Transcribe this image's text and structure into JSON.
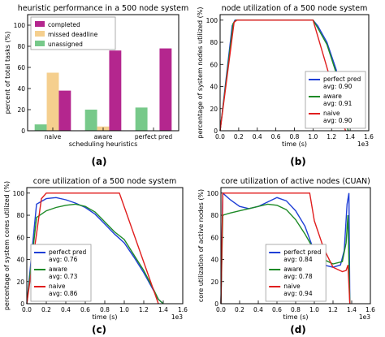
{
  "chart_data": [
    {
      "type": "bar",
      "title": "heuristic performance in a 500 node system",
      "xlabel": "scheduling heuristics",
      "ylabel": "percent of total tasks (%)",
      "ylim": [
        0,
        110
      ],
      "yticks": [
        0,
        20,
        40,
        60,
        80,
        100
      ],
      "categories": [
        "naive",
        "aware",
        "perfect pred"
      ],
      "series": [
        {
          "name": "unassigned",
          "color": "#77c98a",
          "values": [
            6,
            20,
            22
          ]
        },
        {
          "name": "missed deadline",
          "color": "#f5cf8e",
          "values": [
            55,
            4,
            0
          ]
        },
        {
          "name": "completed",
          "color": "#b4268e",
          "values": [
            38,
            76,
            78
          ]
        }
      ],
      "legend": "top-left",
      "panel_label": "(a)"
    },
    {
      "type": "line",
      "title": "node utilization of a 500 node system",
      "xlabel": "time (s)",
      "ylabel": "percentage of system nodes utilized (%)",
      "xlim": [
        0,
        1.6
      ],
      "ylim": [
        0,
        105
      ],
      "xticks": [
        "0.0",
        "0.2",
        "0.4",
        "0.6",
        "0.8",
        "1.0",
        "1.2",
        "1.4",
        "1.6"
      ],
      "yticks": [
        0,
        20,
        40,
        60,
        80,
        100
      ],
      "x_multiplier": "1e3",
      "legend": "bottom-right",
      "series": [
        {
          "name": "perfect pred",
          "avg_label": "avg: 0.90",
          "color": "#1f3fd6",
          "x": [
            0,
            0.13,
            0.16,
            1.0,
            1.05,
            1.15,
            1.25,
            1.32,
            1.35,
            1.38
          ],
          "y": [
            0,
            95,
            100,
            100,
            95,
            80,
            55,
            25,
            8,
            0
          ]
        },
        {
          "name": "aware",
          "avg_label": "avg: 0.91",
          "color": "#1d8a26",
          "x": [
            0,
            0.14,
            0.17,
            1.0,
            1.05,
            1.15,
            1.25,
            1.32,
            1.36,
            1.38
          ],
          "y": [
            0,
            97,
            100,
            100,
            93,
            78,
            52,
            24,
            6,
            0
          ]
        },
        {
          "name": "naive",
          "avg_label": "avg: 0.90",
          "color": "#e01e1e",
          "x": [
            0,
            0.15,
            0.18,
            1.0,
            1.35
          ],
          "y": [
            0,
            98,
            100,
            100,
            0
          ]
        }
      ],
      "panel_label": "(b)"
    },
    {
      "type": "line",
      "title": "core utilization of a 500 node system",
      "xlabel": "time (s)",
      "ylabel": "percentage of system cores utilized (%)",
      "xlim": [
        0,
        1.6
      ],
      "ylim": [
        0,
        105
      ],
      "xticks": [
        "0.0",
        "0.2",
        "0.4",
        "0.6",
        "0.8",
        "1.0",
        "1.2",
        "1.4",
        "1.6"
      ],
      "yticks": [
        0,
        20,
        40,
        60,
        80,
        100
      ],
      "x_multiplier": "1e3",
      "legend": "bottom-left",
      "series": [
        {
          "name": "perfect pred",
          "avg_label": "avg: 0.76",
          "color": "#1f3fd6",
          "x": [
            0,
            0.1,
            0.2,
            0.3,
            0.4,
            0.5,
            0.6,
            0.7,
            0.8,
            0.9,
            1.0,
            1.1,
            1.2,
            1.3,
            1.35,
            1.4
          ],
          "y": [
            0,
            90,
            95,
            96,
            94,
            91,
            87,
            81,
            72,
            63,
            55,
            42,
            28,
            12,
            4,
            0
          ]
        },
        {
          "name": "aware",
          "avg_label": "avg: 0.73",
          "color": "#1d8a26",
          "x": [
            0,
            0.1,
            0.2,
            0.3,
            0.4,
            0.5,
            0.6,
            0.7,
            0.8,
            0.9,
            1.0,
            1.1,
            1.2,
            1.3,
            1.35,
            1.4
          ],
          "y": [
            0,
            78,
            84,
            87,
            89,
            90,
            88,
            83,
            74,
            65,
            58,
            44,
            30,
            13,
            4,
            0
          ]
        },
        {
          "name": "naive",
          "avg_label": "avg: 0.86",
          "color": "#e01e1e",
          "x": [
            0,
            0.15,
            0.2,
            0.95,
            1.35
          ],
          "y": [
            0,
            95,
            100,
            100,
            0
          ]
        }
      ],
      "panel_label": "(c)"
    },
    {
      "type": "line",
      "title": "core utilization of active nodes (CUAN)",
      "xlabel": "time (s)",
      "ylabel": "core utilization of active nodes (%)",
      "xlim": [
        0,
        1.6
      ],
      "ylim": [
        0,
        105
      ],
      "xticks": [
        "0.0",
        "0.2",
        "0.4",
        "0.6",
        "0.8",
        "1.0",
        "1.2",
        "1.4",
        "1.6"
      ],
      "yticks": [
        0,
        20,
        40,
        60,
        80,
        100
      ],
      "x_multiplier": "1e3",
      "legend": "bottom-center",
      "series": [
        {
          "name": "perfect pred",
          "avg_label": "avg: 0.84",
          "color": "#1f3fd6",
          "x": [
            0,
            0.02,
            0.1,
            0.2,
            0.3,
            0.4,
            0.5,
            0.6,
            0.7,
            0.8,
            0.9,
            1.0,
            1.1,
            1.2,
            1.28,
            1.32,
            1.35,
            1.37,
            1.38
          ],
          "y": [
            0,
            100,
            94,
            88,
            86,
            88,
            92,
            96,
            93,
            84,
            70,
            47,
            35,
            33,
            35,
            48,
            90,
            100,
            0
          ]
        },
        {
          "name": "aware",
          "avg_label": "avg: 0.78",
          "color": "#1d8a26",
          "x": [
            0,
            0.02,
            0.1,
            0.2,
            0.3,
            0.4,
            0.5,
            0.6,
            0.7,
            0.8,
            0.9,
            1.0,
            1.1,
            1.2,
            1.3,
            1.34,
            1.36,
            1.38
          ],
          "y": [
            0,
            80,
            82,
            84,
            86,
            88,
            90,
            89,
            85,
            76,
            63,
            48,
            40,
            36,
            38,
            55,
            80,
            0
          ]
        },
        {
          "name": "naive",
          "avg_label": "avg: 0.94",
          "color": "#e01e1e",
          "x": [
            0,
            0.02,
            0.95,
            1.0,
            1.1,
            1.2,
            1.3,
            1.34,
            1.36,
            1.38
          ],
          "y": [
            0,
            100,
            100,
            75,
            50,
            33,
            29,
            30,
            35,
            0
          ]
        }
      ],
      "panel_label": "(d)"
    }
  ]
}
